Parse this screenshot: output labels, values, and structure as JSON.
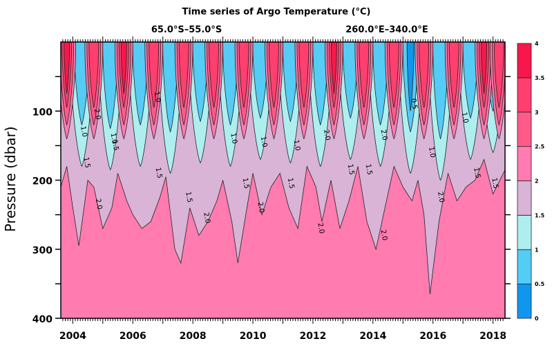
{
  "chart_data": {
    "type": "heatmap",
    "subtype": "filled-contour",
    "title": "Time series of Argo Temperature (°C)",
    "subtitle_left": "65.0°S–55.0°S",
    "subtitle_right": "260.0°E–340.0°E",
    "xlabel": "",
    "ylabel": "Pressure (dbar)",
    "xlim": [
      2003.6,
      2018.4
    ],
    "ylim": [
      400,
      0
    ],
    "x_ticks": [
      2004,
      2006,
      2008,
      2010,
      2012,
      2014,
      2016,
      2018
    ],
    "x_tick_labels": [
      "2004",
      "2006",
      "2008",
      "2010",
      "2012",
      "2014",
      "2016",
      "2018"
    ],
    "y_ticks": [
      100,
      200,
      300,
      400
    ],
    "y_tick_labels": [
      "100",
      "200",
      "300",
      "400"
    ],
    "colorbar": {
      "levels": [
        0,
        0.5,
        1,
        1.5,
        2,
        2.5,
        3,
        3.5,
        4
      ],
      "labels": [
        "0",
        "0.5",
        "1",
        "1.5",
        "2",
        "2.5",
        "3",
        "3.5",
        "4"
      ],
      "colors": [
        "#1196f0",
        "#55ccf5",
        "#aeeeee",
        "#d9b4d6",
        "#ff7bb0",
        "#ff5a8a",
        "#ff3f6e",
        "#f8174a"
      ]
    },
    "contour_labels": [
      "0.5",
      "1.0",
      "1.5",
      "2.0"
    ],
    "summer_peaks": [
      2003.8,
      2004.7,
      2005.7,
      2006.7,
      2007.7,
      2008.7,
      2009.7,
      2010.7,
      2011.7,
      2012.7,
      2013.7,
      2014.7,
      2015.7,
      2016.7,
      2017.7,
      2018.2
    ],
    "isotherm_2C_depth_approx": {
      "x": [
        2003.6,
        2003.8,
        2004.0,
        2004.2,
        2004.5,
        2004.7,
        2005.0,
        2005.3,
        2005.5,
        2005.8,
        2006.0,
        2006.3,
        2006.6,
        2006.9,
        2007.1,
        2007.4,
        2007.6,
        2007.9,
        2008.2,
        2008.5,
        2008.8,
        2009.0,
        2009.3,
        2009.5,
        2009.8,
        2010.0,
        2010.3,
        2010.6,
        2010.9,
        2011.2,
        2011.5,
        2011.8,
        2012.1,
        2012.3,
        2012.6,
        2012.9,
        2013.2,
        2013.5,
        2013.8,
        2014.1,
        2014.4,
        2014.7,
        2015.0,
        2015.3,
        2015.5,
        2015.7,
        2015.9,
        2016.2,
        2016.5,
        2016.8,
        2017.1,
        2017.4,
        2017.7,
        2018.0,
        2018.4
      ],
      "depth": [
        210,
        180,
        240,
        295,
        200,
        210,
        270,
        240,
        190,
        230,
        250,
        270,
        260,
        225,
        195,
        300,
        320,
        240,
        280,
        260,
        230,
        200,
        260,
        320,
        240,
        190,
        250,
        210,
        190,
        240,
        270,
        180,
        210,
        260,
        200,
        270,
        230,
        180,
        260,
        300,
        240,
        180,
        210,
        230,
        200,
        250,
        365,
        260,
        190,
        230,
        210,
        200,
        170,
        220,
        185
      ]
    },
    "isotherm_1_5C_depth_approx": {
      "x": [
        2003.6,
        2004.2,
        2004.7,
        2005.2,
        2005.7,
        2006.2,
        2006.7,
        2007.2,
        2007.7,
        2008.2,
        2008.7,
        2009.2,
        2009.7,
        2010.2,
        2010.7,
        2011.2,
        2011.7,
        2012.2,
        2012.7,
        2013.2,
        2013.7,
        2014.2,
        2014.7,
        2015.2,
        2015.7,
        2016.2,
        2016.7,
        2017.2,
        2017.7,
        2018.2,
        2018.4
      ],
      "depth": [
        100,
        180,
        110,
        185,
        100,
        180,
        110,
        190,
        110,
        175,
        110,
        180,
        110,
        170,
        110,
        175,
        110,
        180,
        120,
        170,
        120,
        180,
        130,
        190,
        130,
        200,
        140,
        170,
        130,
        160,
        110
      ]
    }
  }
}
